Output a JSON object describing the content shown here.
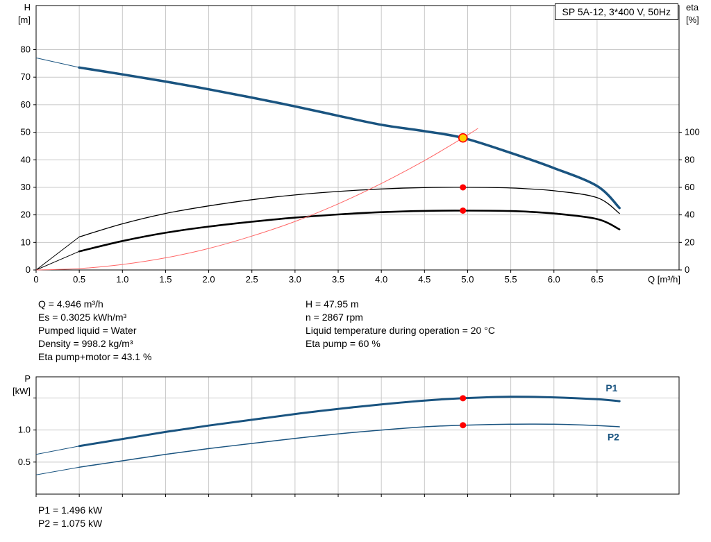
{
  "title_box": "SP 5A-12, 3*400 V, 50Hz",
  "info": {
    "left": [
      "Q = 4.946 m³/h",
      "Es = 0.3025 kWh/m³",
      "Pumped liquid = Water",
      "Density = 998.2 kg/m³",
      "Eta pump+motor = 43.1 %"
    ],
    "right": [
      "H = 47.95 m",
      "n = 2867 rpm",
      "Liquid temperature during operation = 20 °C",
      "Eta pump = 60 %"
    ]
  },
  "power_info": [
    "P1 = 1.496 kW",
    "P2 = 1.075 kW"
  ],
  "colors": {
    "curve_blue": "#1a5480",
    "curve_red": "#ff6666",
    "marker_red": "#ff0000",
    "marker_yellow": "#ffd100",
    "grid": "#c8c8c8"
  },
  "chart_data": [
    {
      "type": "line",
      "title": "SP 5A-12, 3*400 V, 50Hz",
      "xlabel": "Q [m³/h]",
      "ylabel_left": "H [m]",
      "ylabel_right": "eta [%]",
      "xlim": [
        0,
        7.45
      ],
      "ylim_left": [
        0,
        96
      ],
      "ylim_right": [
        0,
        192
      ],
      "grid": true,
      "grid_color": "#c8c8c8",
      "xticks": [
        0,
        0.5,
        1,
        1.5,
        2,
        2.5,
        3,
        3.5,
        4,
        4.5,
        5,
        5.5,
        6,
        6.5
      ],
      "xtick_labels": [
        "0",
        "0.5",
        "1.0",
        "1.5",
        "2.0",
        "2.5",
        "3.0",
        "3.5",
        "4.0",
        "4.5",
        "5.0",
        "5.5",
        "6.0",
        "6.5"
      ],
      "yticks_left": [
        0,
        10,
        20,
        30,
        40,
        50,
        60,
        70,
        80
      ],
      "ytick_left_labels": [
        "0",
        "10",
        "20",
        "30",
        "40",
        "50",
        "60",
        "70",
        "80"
      ],
      "yticks_right": [
        0,
        20,
        40,
        60,
        80,
        100
      ],
      "ytick_right_labels": [
        "0",
        "20",
        "40",
        "60",
        "80",
        "100"
      ],
      "series": [
        {
          "name": "head-curve",
          "axis": "left",
          "color": "#1a5480",
          "width": 3.5,
          "thin_until": 0.5,
          "points": [
            [
              0,
              77
            ],
            [
              0.5,
              73.5
            ],
            [
              1,
              71
            ],
            [
              1.5,
              68.4
            ],
            [
              2,
              65.6
            ],
            [
              2.5,
              62.6
            ],
            [
              3,
              59.4
            ],
            [
              3.5,
              56
            ],
            [
              4,
              52.7
            ],
            [
              4.5,
              50.4
            ],
            [
              4.946,
              47.95
            ],
            [
              5.5,
              42.5
            ],
            [
              6,
              37
            ],
            [
              6.5,
              30.5
            ],
            [
              6.76,
              22.5
            ]
          ]
        },
        {
          "name": "eta-pump-curve",
          "axis": "right",
          "color": "#000000",
          "width": 1.3,
          "thin_until": 0.5,
          "points": [
            [
              0,
              0
            ],
            [
              0.5,
              24
            ],
            [
              1,
              33.5
            ],
            [
              1.5,
              41
            ],
            [
              2,
              46.5
            ],
            [
              2.5,
              51
            ],
            [
              3,
              54.5
            ],
            [
              3.5,
              57
            ],
            [
              4,
              58.8
            ],
            [
              4.5,
              59.8
            ],
            [
              4.946,
              60
            ],
            [
              5.5,
              59.5
            ],
            [
              6,
              57.5
            ],
            [
              6.5,
              52.5
            ],
            [
              6.76,
              41
            ]
          ]
        },
        {
          "name": "eta-pump-motor-curve",
          "axis": "right",
          "color": "#000000",
          "width": 2.6,
          "thin_until": 0.5,
          "points": [
            [
              0,
              0
            ],
            [
              0.5,
              13.5
            ],
            [
              1,
              21
            ],
            [
              1.5,
              27
            ],
            [
              2,
              31.5
            ],
            [
              2.5,
              35
            ],
            [
              3,
              38
            ],
            [
              3.5,
              40.3
            ],
            [
              4,
              42
            ],
            [
              4.5,
              42.9
            ],
            [
              4.946,
              43.1
            ],
            [
              5.5,
              42.8
            ],
            [
              6,
              41
            ],
            [
              6.5,
              37
            ],
            [
              6.76,
              29.5
            ]
          ]
        },
        {
          "name": "system-curve",
          "axis": "left",
          "color": "#ff6666",
          "width": 1,
          "points": [
            [
              0,
              0
            ],
            [
              0.5,
              0.5
            ],
            [
              1,
              2
            ],
            [
              1.5,
              4.4
            ],
            [
              2,
              7.8
            ],
            [
              2.5,
              12.3
            ],
            [
              3,
              17.6
            ],
            [
              3.5,
              24
            ],
            [
              4,
              31.4
            ],
            [
              4.5,
              39.7
            ],
            [
              4.946,
              47.95
            ],
            [
              5.12,
              51.4
            ]
          ]
        }
      ],
      "markers": [
        {
          "name": "duty-point",
          "x": 4.946,
          "y": 47.95,
          "axis": "left",
          "r": 6,
          "fill": "#ffd100",
          "stroke": "#ff0000"
        },
        {
          "name": "eta-pump-point",
          "x": 4.946,
          "y": 60,
          "axis": "right",
          "r": 4.5,
          "fill": "#ff0000"
        },
        {
          "name": "eta-pump-motor-point",
          "x": 4.946,
          "y": 43.1,
          "axis": "right",
          "r": 4.5,
          "fill": "#ff0000"
        }
      ]
    },
    {
      "type": "line",
      "title": "Power curves",
      "xlabel": "",
      "ylabel_left": "P [kW]",
      "xlim": [
        0,
        7.45
      ],
      "ylim_left": [
        0,
        1.83
      ],
      "grid": true,
      "grid_color": "#c8c8c8",
      "xticks": [
        0,
        0.5,
        1,
        1.5,
        2,
        2.5,
        3,
        3.5,
        4,
        4.5,
        5,
        5.5,
        6,
        6.5
      ],
      "yticks_left": [
        0.5,
        1.0,
        1.5
      ],
      "ytick_left_labels": [
        "0.5",
        "1.0",
        ""
      ],
      "series": [
        {
          "name": "p1-curve",
          "axis": "left",
          "color": "#1a5480",
          "width": 3,
          "thin_until": 0.5,
          "label": "P1",
          "label_pos": [
            6.6,
            1.6
          ],
          "points": [
            [
              0,
              0.62
            ],
            [
              0.5,
              0.75
            ],
            [
              1,
              0.86
            ],
            [
              1.5,
              0.97
            ],
            [
              2,
              1.07
            ],
            [
              2.5,
              1.16
            ],
            [
              3,
              1.25
            ],
            [
              3.5,
              1.33
            ],
            [
              4,
              1.4
            ],
            [
              4.5,
              1.46
            ],
            [
              4.946,
              1.496
            ],
            [
              5.5,
              1.52
            ],
            [
              6,
              1.51
            ],
            [
              6.5,
              1.48
            ],
            [
              6.76,
              1.45
            ]
          ]
        },
        {
          "name": "p2-curve",
          "axis": "left",
          "color": "#1a5480",
          "width": 1.5,
          "thin_until": 0.5,
          "label": "P2",
          "label_pos": [
            6.62,
            0.84
          ],
          "points": [
            [
              0,
              0.3
            ],
            [
              0.5,
              0.42
            ],
            [
              1,
              0.52
            ],
            [
              1.5,
              0.62
            ],
            [
              2,
              0.71
            ],
            [
              2.5,
              0.79
            ],
            [
              3,
              0.87
            ],
            [
              3.5,
              0.94
            ],
            [
              4,
              1.0
            ],
            [
              4.5,
              1.05
            ],
            [
              4.946,
              1.075
            ],
            [
              5.5,
              1.09
            ],
            [
              6,
              1.09
            ],
            [
              6.5,
              1.07
            ],
            [
              6.76,
              1.05
            ]
          ]
        }
      ],
      "markers": [
        {
          "name": "p1-point",
          "x": 4.946,
          "y": 1.496,
          "axis": "left",
          "r": 4.5,
          "fill": "#ff0000"
        },
        {
          "name": "p2-point",
          "x": 4.946,
          "y": 1.075,
          "axis": "left",
          "r": 4.5,
          "fill": "#ff0000"
        }
      ]
    }
  ]
}
